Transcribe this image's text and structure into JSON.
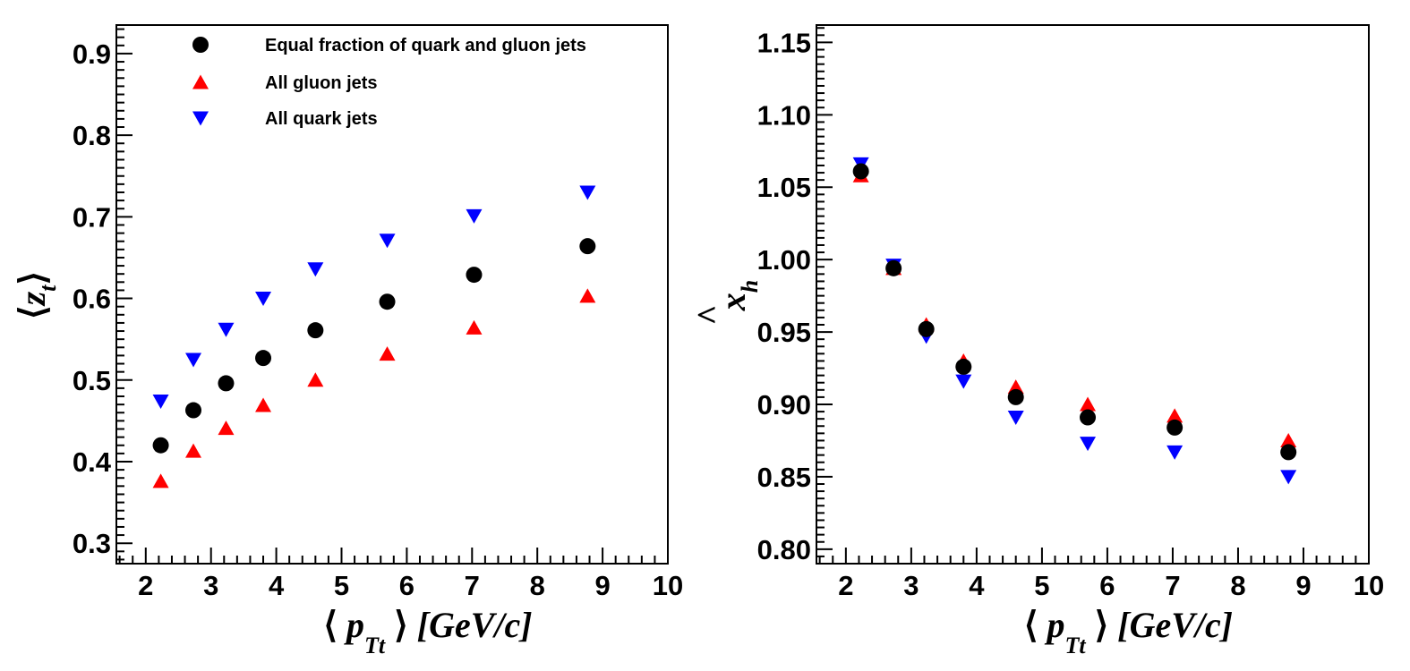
{
  "chart_data": [
    {
      "type": "scatter",
      "xlabel": {
        "open": "⟨",
        "var": "p",
        "sub": "Tt",
        "close": "⟩",
        "unit": "[GeV/c]"
      },
      "ylabel": {
        "open": "⟨",
        "var": "z",
        "sub": "t",
        "close": "⟩"
      },
      "xlim": [
        1.55,
        10.0
      ],
      "ylim": [
        0.275,
        0.935
      ],
      "xticks": [
        2,
        3,
        4,
        5,
        6,
        7,
        8,
        9,
        10
      ],
      "xtick_labels": [
        "2",
        "3",
        "4",
        "5",
        "6",
        "7",
        "8",
        "9",
        "10"
      ],
      "yticks": [
        0.3,
        0.4,
        0.5,
        0.6,
        0.7,
        0.8,
        0.9
      ],
      "ytick_labels": [
        "0.3",
        "0.4",
        "0.5",
        "0.6",
        "0.7",
        "0.8",
        "0.9"
      ],
      "legend_position": "top",
      "series": [
        {
          "name": "Equal fraction of quark and gluon jets",
          "marker": "circle",
          "color": "#000000",
          "x": [
            2.23,
            2.73,
            3.23,
            3.8,
            4.6,
            5.7,
            7.03,
            8.77
          ],
          "y": [
            0.42,
            0.463,
            0.496,
            0.527,
            0.561,
            0.596,
            0.629,
            0.664
          ]
        },
        {
          "name": "All gluon jets",
          "marker": "triangle-up",
          "color": "#ff0000",
          "x": [
            2.23,
            2.73,
            3.23,
            3.8,
            4.6,
            5.7,
            7.03,
            8.77
          ],
          "y": [
            0.376,
            0.413,
            0.441,
            0.469,
            0.5,
            0.532,
            0.564,
            0.603
          ]
        },
        {
          "name": "All quark jets",
          "marker": "triangle-down",
          "color": "#0000ff",
          "x": [
            2.23,
            2.73,
            3.23,
            3.8,
            4.6,
            5.7,
            7.03,
            8.77
          ],
          "y": [
            0.474,
            0.525,
            0.562,
            0.6,
            0.636,
            0.671,
            0.701,
            0.73
          ]
        }
      ]
    },
    {
      "type": "scatter",
      "xlabel": {
        "open": "⟨",
        "var": "p",
        "sub": "Tt",
        "close": "⟩",
        "unit": "[GeV/c]"
      },
      "ylabel": {
        "hat": "^",
        "var": "x",
        "sub": "h"
      },
      "xlim": [
        1.55,
        10.0
      ],
      "ylim": [
        0.79,
        1.162
      ],
      "xticks": [
        2,
        3,
        4,
        5,
        6,
        7,
        8,
        9,
        10
      ],
      "xtick_labels": [
        "2",
        "3",
        "4",
        "5",
        "6",
        "7",
        "8",
        "9",
        "10"
      ],
      "yticks": [
        0.8,
        0.85,
        0.9,
        0.95,
        1.0,
        1.05,
        1.1,
        1.15
      ],
      "ytick_labels": [
        "0.80",
        "0.85",
        "0.90",
        "0.95",
        "1.00",
        "1.05",
        "1.10",
        "1.15"
      ],
      "series": [
        {
          "name": "Equal fraction of quark and gluon jets",
          "marker": "circle",
          "color": "#000000",
          "x": [
            2.23,
            2.73,
            3.23,
            3.8,
            4.6,
            5.7,
            7.03,
            8.77
          ],
          "y": [
            1.061,
            0.994,
            0.952,
            0.926,
            0.905,
            0.891,
            0.884,
            0.867
          ]
        },
        {
          "name": "All gluon jets",
          "marker": "triangle-up",
          "color": "#ff0000",
          "x": [
            2.23,
            2.73,
            3.23,
            3.8,
            4.6,
            5.7,
            7.03,
            8.77
          ],
          "y": [
            1.058,
            0.994,
            0.955,
            0.93,
            0.912,
            0.9,
            0.892,
            0.875
          ]
        },
        {
          "name": "All quark jets",
          "marker": "triangle-down",
          "color": "#0000ff",
          "x": [
            2.23,
            2.73,
            3.23,
            3.8,
            4.6,
            5.7,
            7.03,
            8.77
          ],
          "y": [
            1.066,
            0.996,
            0.947,
            0.916,
            0.891,
            0.873,
            0.867,
            0.85
          ]
        }
      ]
    }
  ]
}
